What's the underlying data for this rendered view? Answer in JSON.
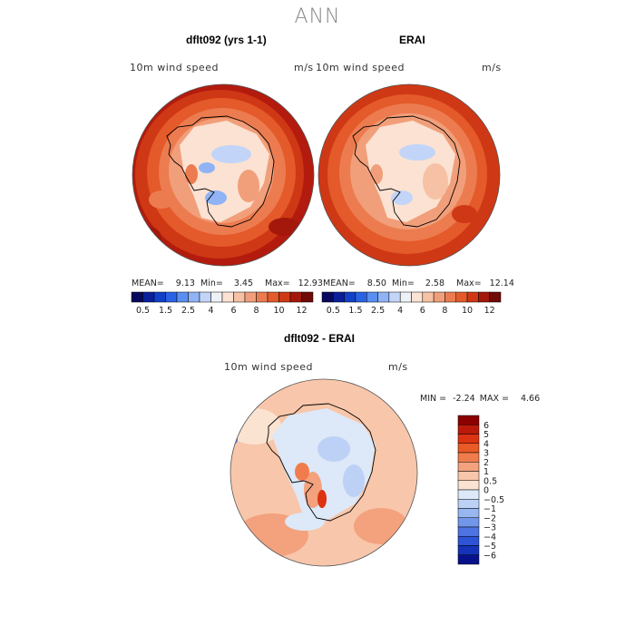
{
  "figure": {
    "season": "ANN",
    "colors": {
      "land_outline": "#000000",
      "map_border": "#555555",
      "title_gray": "#888888"
    }
  },
  "chart_data": [
    {
      "type": "heatmap",
      "title": "dflt092 (yrs 1-1)",
      "variable": "10m wind speed",
      "units": "m/s",
      "projection": "south-polar-stereographic",
      "stats": {
        "mean_label": "MEAN=",
        "mean": "9.13",
        "min_label": "Min=",
        "min": "3.45",
        "max_label": "Max=",
        "max": "12.93"
      },
      "colorbar": {
        "orientation": "horizontal",
        "colors": [
          "#08085e",
          "#0b1f9a",
          "#1240c9",
          "#2a62e6",
          "#5a8ef0",
          "#8fb3f5",
          "#c2d5f8",
          "#eef1f5",
          "#fbe2d2",
          "#f6c1a4",
          "#f19f7a",
          "#ec7c50",
          "#e45a2a",
          "#cf3814",
          "#a4180c",
          "#6f0a06"
        ],
        "tick_labels": [
          "0.5",
          "1.5",
          "2.5",
          "4",
          "6",
          "8",
          "10",
          "12"
        ]
      }
    },
    {
      "type": "heatmap",
      "title": "ERAI",
      "variable": "10m wind speed",
      "units": "m/s",
      "projection": "south-polar-stereographic",
      "stats": {
        "mean_label": "MEAN=",
        "mean": "8.50",
        "min_label": "Min=",
        "min": "2.58",
        "max_label": "Max=",
        "max": "12.14"
      },
      "colorbar": {
        "orientation": "horizontal",
        "colors": [
          "#08085e",
          "#0b1f9a",
          "#1240c9",
          "#2a62e6",
          "#5a8ef0",
          "#8fb3f5",
          "#c2d5f8",
          "#eef1f5",
          "#fbe2d2",
          "#f6c1a4",
          "#f19f7a",
          "#ec7c50",
          "#e45a2a",
          "#cf3814",
          "#a4180c",
          "#6f0a06"
        ],
        "tick_labels": [
          "0.5",
          "1.5",
          "2.5",
          "4",
          "6",
          "8",
          "10",
          "12"
        ]
      }
    },
    {
      "type": "heatmap",
      "title": "dflt092 - ERAI",
      "variable": "10m wind speed",
      "units": "m/s",
      "projection": "south-polar-stereographic",
      "stats": {
        "min_label": "MIN =",
        "min": "-2.24",
        "max_label": "MAX =",
        "max": "4.66"
      },
      "colorbar": {
        "orientation": "vertical",
        "colors": [
          "#8b0000",
          "#bb1a0a",
          "#dc3312",
          "#ea5a26",
          "#f07c4d",
          "#f3a27d",
          "#f8c6aa",
          "#fbe3d2",
          "#dde8f8",
          "#bcd1f5",
          "#98b6f0",
          "#7296ea",
          "#4d73e2",
          "#2d53d6",
          "#1533b8",
          "#07128a"
        ],
        "tick_labels": [
          "6",
          "5",
          "4",
          "3",
          "2",
          "1",
          "0.5",
          "0",
          "−0.5",
          "−1",
          "−2",
          "−3",
          "−4",
          "−5",
          "−6"
        ]
      }
    }
  ]
}
